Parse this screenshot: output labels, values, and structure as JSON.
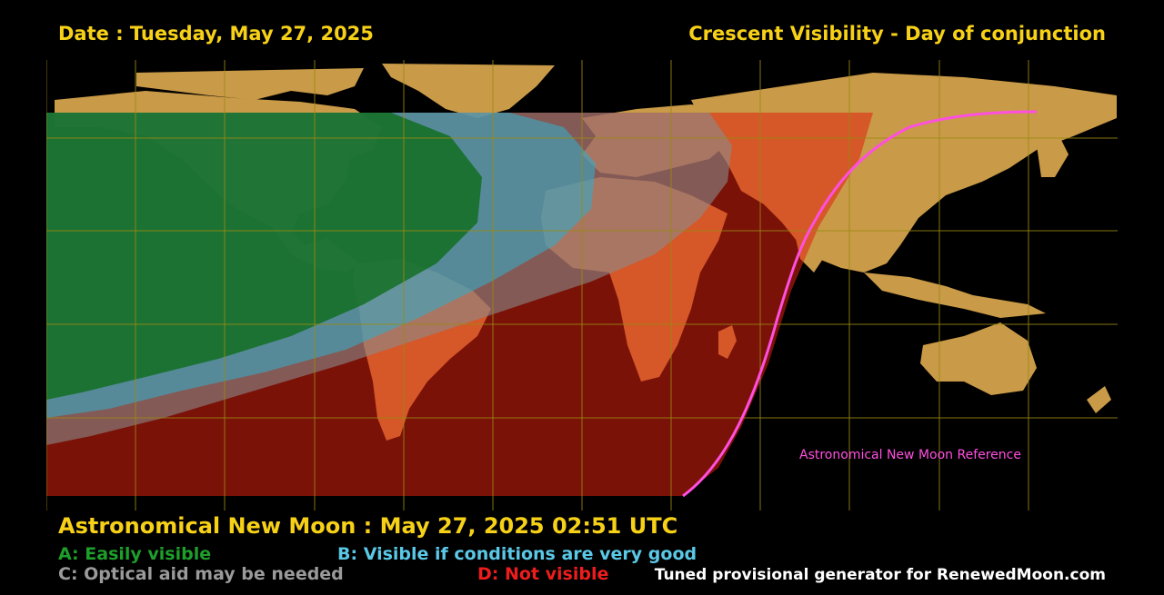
{
  "header": {
    "date": "Date : Tuesday, May 27, 2025",
    "title": "Crescent Visibility - Day of conjunction"
  },
  "map": {
    "reference_curve_label": "Astronomical New Moon Reference",
    "colors": {
      "ocean": "#000000",
      "land": "#c99a47",
      "grid": "#9a8a10",
      "zone_a": "#0a6a12",
      "zone_b": "#3aa8c4",
      "zone_c": "#8a8a8a",
      "zone_d": "#e0200f",
      "reference_curve": "#ff4fe0"
    }
  },
  "footer": {
    "new_moon": "Astronomical New Moon : May 27, 2025 02:51 UTC",
    "legend": {
      "a": {
        "label": "A: Easily visible",
        "color": "#1e9e2a"
      },
      "b": {
        "label": "B: Visible if conditions are very good",
        "color": "#5ac8e6"
      },
      "c": {
        "label": "C: Optical aid may be needed",
        "color": "#9a9a9a"
      },
      "d": {
        "label": "D: Not visible",
        "color": "#ee1d1d"
      }
    },
    "credit": "Tuned provisional generator for RenewedMoon.com"
  }
}
